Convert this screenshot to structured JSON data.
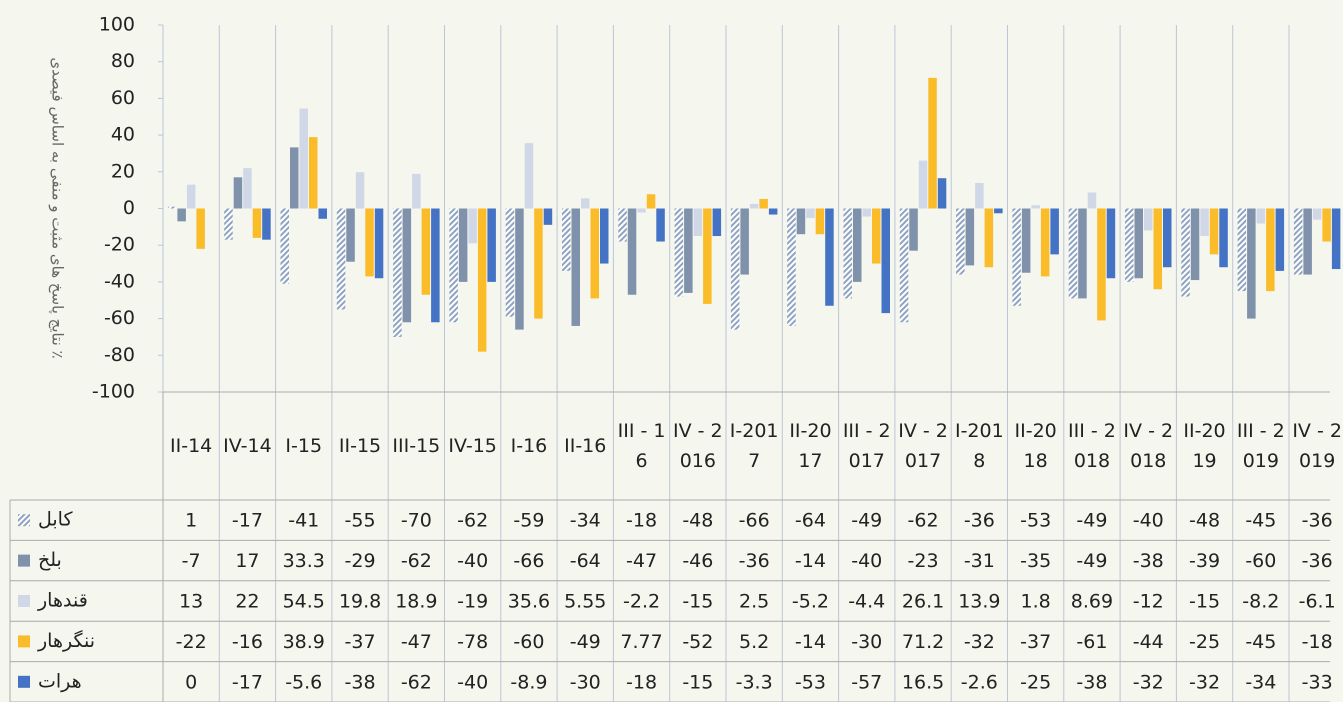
{
  "chart_data": {
    "type": "bar",
    "y_axis_label": "نتایج پاسخ های مثبت و منفی به اساس فیصدی ٪",
    "categories": [
      "II-14",
      "IV-14",
      "I-15",
      "II-15",
      "III-15",
      "IV-15",
      "I-16",
      "II-16",
      "III - 16",
      "IV - 2016",
      "I-2017",
      "II-2017",
      "III - 2017",
      "IV - 2017",
      "I-2018",
      "II-2018",
      "III - 2018",
      "IV - 2018",
      "II-2019",
      "III - 2019",
      "IV - 2019"
    ],
    "series": [
      {
        "name": "کابل",
        "color": "#8ea2c2",
        "pattern": "diagonal",
        "values": [
          1,
          -17,
          -41,
          -55,
          -70,
          -62,
          -59,
          -34,
          -18,
          -48,
          -66,
          -64,
          -49,
          -62,
          -36,
          -53,
          -49,
          -40,
          -48,
          -45,
          -36
        ]
      },
      {
        "name": "بلخ",
        "color": "#7f91ab",
        "values": [
          -7,
          17,
          33.3,
          -29,
          -62,
          -40,
          -66,
          -64,
          -47,
          -46,
          -36,
          -14,
          -40,
          -23,
          -31,
          -35,
          -49,
          -38,
          -39,
          -60,
          -36
        ]
      },
      {
        "name": "قندهار",
        "color": "#d0d8e8",
        "values": [
          13,
          22,
          54.5,
          19.8,
          18.9,
          -19,
          35.6,
          5.55,
          -2.2,
          -15,
          2.5,
          -5.2,
          -4.4,
          26.1,
          13.9,
          1.8,
          8.69,
          -12,
          -15,
          -8.2,
          -6.1
        ]
      },
      {
        "name": "ننگرهار",
        "color": "#fbbc2a",
        "values": [
          -22,
          -16,
          38.9,
          -37,
          -47,
          -78,
          -60,
          -49,
          7.77,
          -52,
          5.2,
          -14,
          -30,
          71.2,
          -32,
          -37,
          -61,
          -44,
          -25,
          -45,
          -18
        ]
      },
      {
        "name": "هرات",
        "color": "#4472c4",
        "values": [
          0,
          -17,
          -5.6,
          -38,
          -62,
          -40,
          -8.9,
          -30,
          -18,
          -15,
          -3.3,
          -53,
          -57,
          16.5,
          -2.6,
          -25,
          -38,
          -32,
          -32,
          -34,
          -33
        ]
      }
    ],
    "ylim": [
      -100,
      100
    ],
    "yticks": [
      100,
      80,
      60,
      40,
      20,
      0,
      -20,
      -40,
      -60,
      -80,
      -100
    ],
    "grid": true
  }
}
